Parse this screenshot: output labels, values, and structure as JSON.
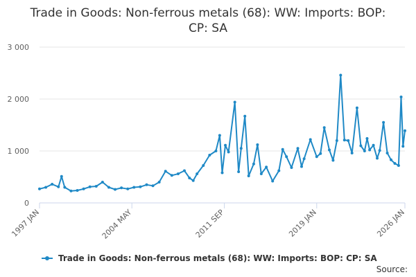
{
  "chart_data": {
    "type": "line",
    "title": "Trade in Goods: Non-ferrous metals (68): WW: Imports: BOP: CP: SA",
    "xlabel": "",
    "ylabel": "",
    "ylim": [
      0,
      3000
    ],
    "yticks": [
      "0",
      "1 000",
      "2 000",
      "3 000"
    ],
    "yvalues": [
      0,
      1000,
      2000,
      3000
    ],
    "xlim": [
      1997.0,
      2026.0
    ],
    "xticks": [
      {
        "label": "1997 JAN",
        "value": 1997.0
      },
      {
        "label": "2004 MAY",
        "value": 2004.33
      },
      {
        "label": "2011 SEP",
        "value": 2011.67
      },
      {
        "label": "2019 JAN",
        "value": 2019.0
      },
      {
        "label": "2026 JAN",
        "value": 2026.0
      }
    ],
    "grid": true,
    "legend": "bottom",
    "series": [
      {
        "name": "Trade in Goods: Non-ferrous metals (68): WW: Imports: BOP: CP: SA",
        "color": "#1f89c6",
        "x": [
          1997.0,
          1997.5,
          1998.0,
          1998.5,
          1998.75,
          1999.0,
          1999.5,
          2000.0,
          2000.5,
          2001.0,
          2001.5,
          2002.0,
          2002.5,
          2003.0,
          2003.5,
          2004.0,
          2004.5,
          2005.0,
          2005.5,
          2006.0,
          2006.5,
          2007.0,
          2007.5,
          2008.0,
          2008.5,
          2008.9,
          2009.2,
          2009.5,
          2010.0,
          2010.5,
          2011.0,
          2011.3,
          2011.5,
          2011.75,
          2012.0,
          2012.5,
          2012.8,
          2013.0,
          2013.3,
          2013.6,
          2014.0,
          2014.3,
          2014.6,
          2015.0,
          2015.5,
          2016.0,
          2016.3,
          2016.6,
          2017.0,
          2017.5,
          2017.8,
          2018.0,
          2018.5,
          2019.0,
          2019.3,
          2019.6,
          2020.0,
          2020.3,
          2020.6,
          2020.9,
          2021.2,
          2021.5,
          2021.8,
          2022.2,
          2022.5,
          2022.8,
          2023.0,
          2023.2,
          2023.5,
          2023.8,
          2024.0,
          2024.3,
          2024.6,
          2024.9,
          2025.2,
          2025.5,
          2025.7,
          2025.85,
          2026.0
        ],
        "values": [
          270,
          300,
          360,
          310,
          510,
          300,
          230,
          240,
          270,
          310,
          320,
          400,
          300,
          260,
          290,
          270,
          300,
          310,
          350,
          330,
          400,
          610,
          530,
          560,
          620,
          480,
          430,
          560,
          720,
          920,
          1000,
          1300,
          580,
          1110,
          980,
          1940,
          600,
          1050,
          1670,
          520,
          750,
          1120,
          560,
          690,
          420,
          620,
          1030,
          890,
          680,
          1050,
          700,
          850,
          1220,
          890,
          950,
          1450,
          1020,
          820,
          1200,
          2460,
          1210,
          1200,
          960,
          1830,
          1100,
          1000,
          1240,
          1020,
          1110,
          860,
          1010,
          1550,
          960,
          830,
          760,
          720,
          2040,
          1090,
          1390
        ]
      }
    ]
  },
  "footer": {
    "legend_label": "Trade in Goods: Non-ferrous metals (68): WW: Imports: BOP: CP: SA",
    "source_label": "Source:"
  }
}
